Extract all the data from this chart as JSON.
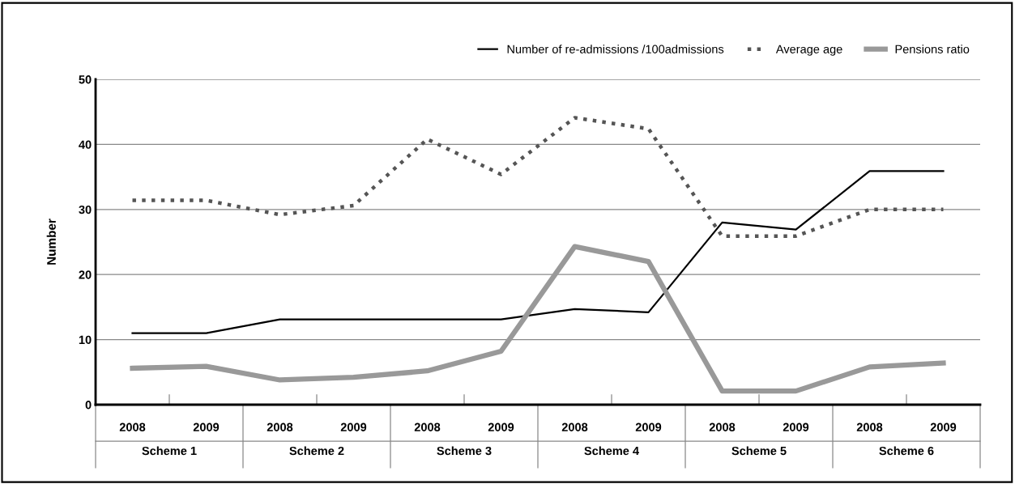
{
  "chart_data": {
    "type": "line",
    "ylabel": "Number",
    "categories": [
      "2008",
      "2009",
      "2008",
      "2009",
      "2008",
      "2009",
      "2008",
      "2009",
      "2008",
      "2009",
      "2008",
      "2009"
    ],
    "annotations": [
      "Scheme 1",
      "Scheme 2",
      "Scheme 3",
      "Scheme 4",
      "Scheme 5",
      "Scheme 6"
    ],
    "series": [
      {
        "name": "Number of re-admissions /100admissions",
        "color": "#000000",
        "line_style": "solid",
        "values": [
          11.0,
          11.0,
          13.1,
          13.1,
          13.1,
          13.1,
          14.7,
          14.2,
          28.0,
          26.9,
          35.9,
          35.9
        ]
      },
      {
        "name": "Average age",
        "color": "#555555",
        "line_style": "dotted",
        "values": [
          31.4,
          31.4,
          29.2,
          30.6,
          40.8,
          35.4,
          44.1,
          42.4,
          25.9,
          25.9,
          30.0,
          30.0
        ]
      },
      {
        "name": "Pensions ratio",
        "color": "#999999",
        "line_style": "solid",
        "values": [
          5.6,
          5.9,
          3.8,
          4.2,
          5.2,
          8.2,
          24.3,
          22.0,
          2.1,
          2.1,
          5.8,
          6.4
        ]
      }
    ],
    "ylim": [
      0,
      50
    ],
    "yticks": [
      0,
      10,
      20,
      30,
      40,
      50
    ],
    "grid": "y",
    "legend": "top right"
  }
}
